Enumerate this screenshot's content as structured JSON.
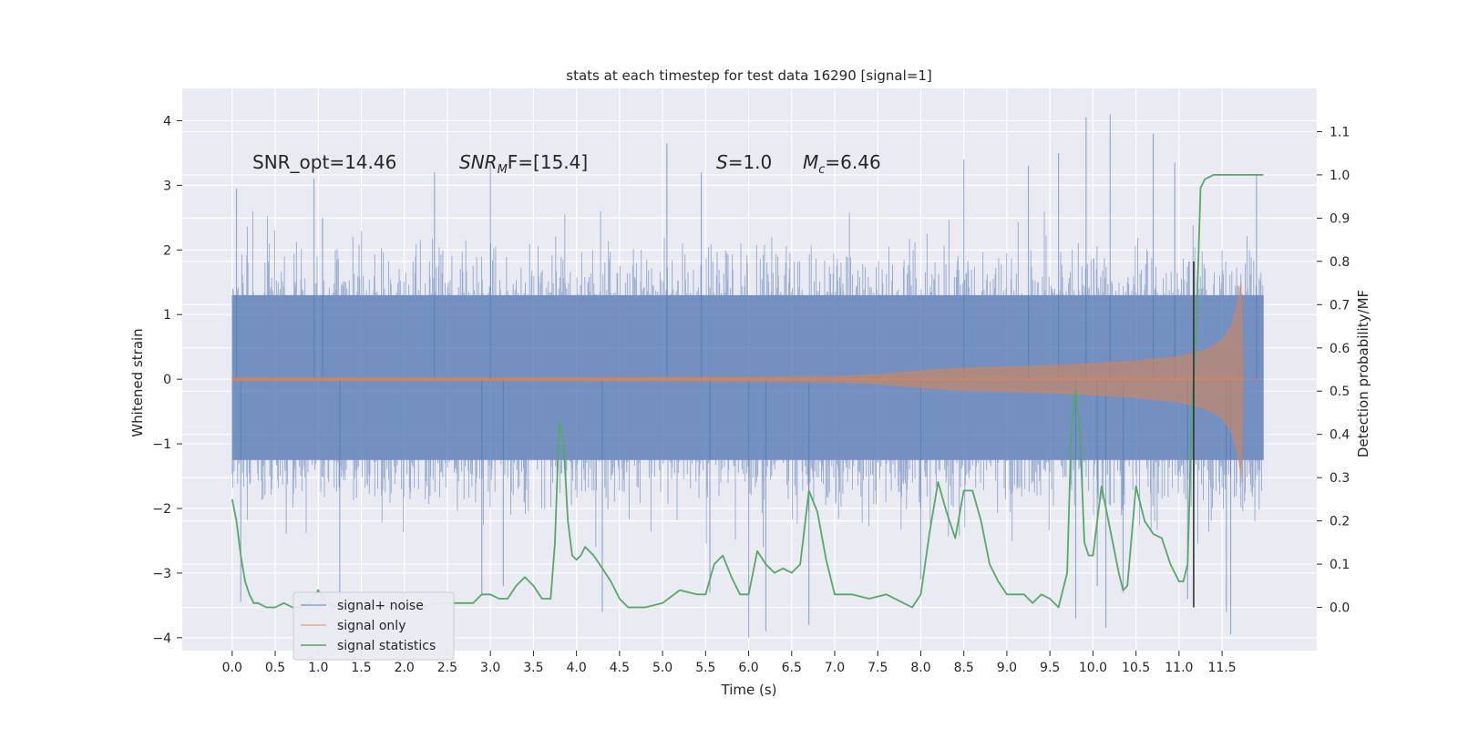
{
  "chart_data": {
    "type": "line",
    "title": "stats at each timestep for test data 16290 [signal=1]",
    "xlabel": "Time (s)",
    "ylabel_left": "Whitened strain",
    "ylabel_right": "Detection probability/MF",
    "xlim": [
      -0.58,
      12.6
    ],
    "ylim_left": [
      -4.2,
      4.5
    ],
    "ylim_right": [
      -0.1,
      1.2
    ],
    "x_ticks": [
      "0.0",
      "0.5",
      "1.0",
      "1.5",
      "2.0",
      "2.5",
      "3.0",
      "3.5",
      "4.0",
      "4.5",
      "5.0",
      "5.5",
      "6.0",
      "6.5",
      "7.0",
      "7.5",
      "8.0",
      "8.5",
      "9.0",
      "9.5",
      "10.0",
      "10.5",
      "11.0",
      "11.5"
    ],
    "y_left_ticks": [
      4,
      3,
      2,
      1,
      0,
      -1,
      -2,
      -3,
      -4
    ],
    "y_left_tick_labels": [
      "4",
      "3",
      "2",
      "1",
      "0",
      "−1",
      "−2",
      "−3",
      "−4"
    ],
    "y_right_ticks": [
      "1.1",
      "1.0",
      "0.9",
      "0.8",
      "0.7",
      "0.6",
      "0.5",
      "0.4",
      "0.3",
      "0.2",
      "0.1",
      "0.0"
    ],
    "grid": true,
    "legend_position": "lower-left",
    "annotations": {
      "snr_opt": "SNR_opt=14.46",
      "snr_mf_sym": "SNR",
      "snr_mf_sub": "M",
      "snr_mf_rest": "F=[15.4]",
      "s_sym": "S",
      "s_rest": "=1.0",
      "mc_sym": "M",
      "mc_sub": "c",
      "mc_rest": "=6.46"
    },
    "series": [
      {
        "name": "signal+ noise",
        "color": "#4c72b0",
        "axis": "left",
        "description_shape": "noise band",
        "x_range": [
          0.0,
          11.98
        ],
        "band_core": [
          -1.25,
          1.3
        ],
        "typical_extent": [
          -2.6,
          2.6
        ],
        "extreme_peaks": [
          {
            "x": 0.05,
            "y": 2.95
          },
          {
            "x": 0.1,
            "y": -3.45
          },
          {
            "x": 0.95,
            "y": 3.1
          },
          {
            "x": 1.05,
            "y": 2.5
          },
          {
            "x": 1.25,
            "y": -3.5
          },
          {
            "x": 2.35,
            "y": 3.2
          },
          {
            "x": 2.9,
            "y": -3.35
          },
          {
            "x": 3.0,
            "y": 3.35
          },
          {
            "x": 3.15,
            "y": -3.2
          },
          {
            "x": 4.3,
            "y": -3.6
          },
          {
            "x": 5.05,
            "y": 3.65
          },
          {
            "x": 5.55,
            "y": -3.3
          },
          {
            "x": 5.45,
            "y": 3.2
          },
          {
            "x": 6.0,
            "y": -4.0
          },
          {
            "x": 6.2,
            "y": -3.9
          },
          {
            "x": 6.7,
            "y": -3.8
          },
          {
            "x": 8.0,
            "y": -3.1
          },
          {
            "x": 8.5,
            "y": 3.4
          },
          {
            "x": 9.25,
            "y": 3.3
          },
          {
            "x": 9.6,
            "y": 3.5
          },
          {
            "x": 9.8,
            "y": -3.7
          },
          {
            "x": 9.92,
            "y": 4.05
          },
          {
            "x": 10.05,
            "y": -3.2
          },
          {
            "x": 10.15,
            "y": -3.85
          },
          {
            "x": 10.2,
            "y": 4.1
          },
          {
            "x": 10.35,
            "y": -3.3
          },
          {
            "x": 10.7,
            "y": 3.8
          },
          {
            "x": 10.95,
            "y": 3.35
          },
          {
            "x": 11.1,
            "y": -3.4
          },
          {
            "x": 11.55,
            "y": -3.6
          },
          {
            "x": 11.6,
            "y": -3.95
          },
          {
            "x": 11.9,
            "y": 3.15
          }
        ]
      },
      {
        "name": "signal only",
        "color": "#dd8452",
        "axis": "left",
        "description_shape": "chirp envelope",
        "x": [
          0.0,
          3.0,
          6.0,
          7.0,
          7.5,
          8.0,
          8.5,
          9.0,
          9.5,
          10.0,
          10.5,
          11.0,
          11.3,
          11.5,
          11.6,
          11.65,
          11.7,
          11.72,
          11.74,
          11.98
        ],
        "envelope": [
          0.02,
          0.02,
          0.03,
          0.04,
          0.07,
          0.13,
          0.17,
          0.19,
          0.21,
          0.24,
          0.28,
          0.35,
          0.45,
          0.6,
          0.8,
          1.0,
          1.3,
          1.5,
          0.0,
          0.0
        ]
      },
      {
        "name": "signal statistics",
        "color": "#55a868",
        "axis": "right",
        "x": [
          0.0,
          0.05,
          0.1,
          0.15,
          0.2,
          0.25,
          0.3,
          0.4,
          0.5,
          0.6,
          0.7,
          0.8,
          0.9,
          1.0,
          1.1,
          1.2,
          1.3,
          1.4,
          1.5,
          1.6,
          1.7,
          1.8,
          1.9,
          2.0,
          2.2,
          2.4,
          2.6,
          2.8,
          2.9,
          3.0,
          3.1,
          3.2,
          3.3,
          3.4,
          3.5,
          3.6,
          3.7,
          3.75,
          3.8,
          3.85,
          3.9,
          3.95,
          4.0,
          4.05,
          4.1,
          4.2,
          4.3,
          4.4,
          4.5,
          4.6,
          4.7,
          4.8,
          5.0,
          5.2,
          5.4,
          5.5,
          5.6,
          5.7,
          5.8,
          5.9,
          6.0,
          6.1,
          6.2,
          6.3,
          6.4,
          6.5,
          6.6,
          6.7,
          6.8,
          6.9,
          7.0,
          7.2,
          7.4,
          7.6,
          7.8,
          7.9,
          8.0,
          8.1,
          8.2,
          8.3,
          8.4,
          8.5,
          8.6,
          8.7,
          8.8,
          8.9,
          9.0,
          9.1,
          9.2,
          9.3,
          9.4,
          9.5,
          9.6,
          9.7,
          9.75,
          9.8,
          9.85,
          9.9,
          9.95,
          10.0,
          10.1,
          10.2,
          10.3,
          10.35,
          10.4,
          10.5,
          10.6,
          10.7,
          10.8,
          10.9,
          11.0,
          11.05,
          11.1,
          11.15,
          11.2,
          11.25,
          11.3,
          11.4,
          11.6,
          11.8,
          11.98
        ],
        "y": [
          0.25,
          0.2,
          0.12,
          0.06,
          0.03,
          0.01,
          0.01,
          0.0,
          0.0,
          0.01,
          0.0,
          0.0,
          0.01,
          0.04,
          0.01,
          0.0,
          0.01,
          0.0,
          0.01,
          0.01,
          0.0,
          0.0,
          0.0,
          0.01,
          0.0,
          0.01,
          0.01,
          0.01,
          0.03,
          0.03,
          0.02,
          0.02,
          0.05,
          0.07,
          0.05,
          0.02,
          0.02,
          0.15,
          0.43,
          0.38,
          0.2,
          0.12,
          0.11,
          0.12,
          0.14,
          0.12,
          0.09,
          0.06,
          0.02,
          0.0,
          0.0,
          0.0,
          0.01,
          0.04,
          0.03,
          0.03,
          0.1,
          0.12,
          0.07,
          0.03,
          0.03,
          0.13,
          0.1,
          0.08,
          0.09,
          0.08,
          0.1,
          0.27,
          0.22,
          0.11,
          0.03,
          0.03,
          0.02,
          0.03,
          0.01,
          0.0,
          0.03,
          0.17,
          0.29,
          0.22,
          0.16,
          0.27,
          0.27,
          0.2,
          0.1,
          0.06,
          0.03,
          0.03,
          0.03,
          0.01,
          0.03,
          0.02,
          0.0,
          0.08,
          0.42,
          0.5,
          0.4,
          0.15,
          0.12,
          0.12,
          0.28,
          0.18,
          0.08,
          0.04,
          0.05,
          0.28,
          0.2,
          0.17,
          0.16,
          0.1,
          0.06,
          0.06,
          0.1,
          0.45,
          0.65,
          0.97,
          0.99,
          1.0,
          1.0,
          1.0,
          1.0
        ]
      }
    ],
    "vertical_marker": {
      "x": 11.17,
      "y_from": 0.0,
      "y_to": 0.8,
      "color": "#333333"
    }
  }
}
